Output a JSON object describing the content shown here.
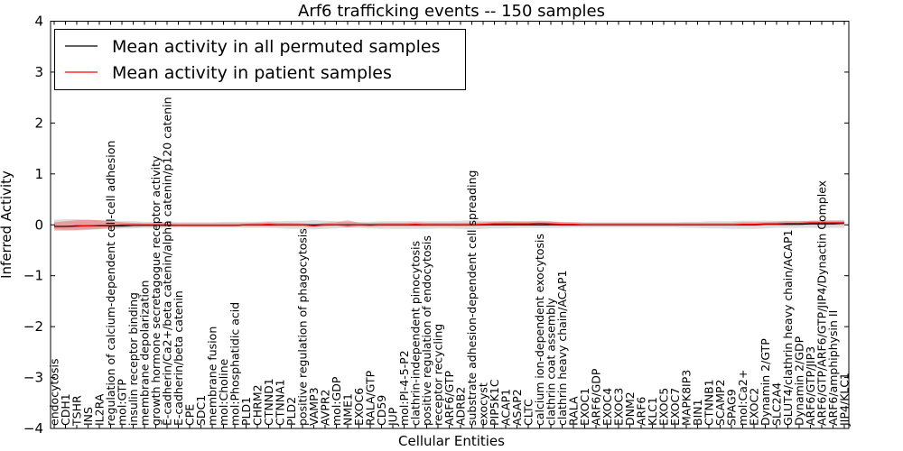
{
  "chart_data": {
    "type": "line",
    "title": "Arf6 trafficking events -- 150 samples",
    "xlabel": "Cellular Entities",
    "ylabel": "Inferred Activity",
    "ylim": [
      -4,
      4
    ],
    "yticks": [
      4,
      3,
      2,
      1,
      0,
      -1,
      -2,
      -3,
      -4
    ],
    "ytick_labels": [
      "4",
      "3",
      "2",
      "1",
      "0",
      "−1",
      "−2",
      "−3",
      "−4"
    ],
    "legend_position": "top-left",
    "categories": [
      "endocytosis",
      "CDH1",
      "TSHR",
      "INS",
      "IL2RA",
      "regulation of calcium-dependent cell-cell adhesion",
      "mol:GTP",
      "insulin receptor binding",
      "membrane depolarization",
      "growth hormone secretagogue receptor activity",
      "E-cadherin/Ca2+/beta catenin/alpha catenin/p120 catenin",
      "E-cadherin/beta catenin",
      "CPE",
      "SDC1",
      "membrane fusion",
      "mol:Choline",
      "mol:Phosphatidic acid",
      "PLD1",
      "CHRM2",
      "CTNND1",
      "CTNNA1",
      "PLD2",
      "positive regulation of phagocytosis",
      "VAMP3",
      "AVPR2",
      "mol:GDP",
      "NME1",
      "EXOC6",
      "RALA/GTP",
      "CD59",
      "JUP",
      "mol:PI-4-5-P2",
      "clathrin-independent pinocytosis",
      "positive regulation of endocytosis",
      "receptor recycling",
      "ARF6/GTP",
      "ADRB2",
      "substrate adhesion-dependent cell spreading",
      "exocyst",
      "PIP5K1C",
      "ACAP1",
      "ASAP2",
      "CLTC",
      "calcium ion-dependent exocytosis",
      "clathrin coat assembly",
      "clathrin heavy chain/ACAP1",
      "RALA",
      "EXOC1",
      "ARF6/GDP",
      "EXOC4",
      "EXOC3",
      "DNM2",
      "ARF6",
      "KLC1",
      "EXOC5",
      "EXOC7",
      "MAPK8IP3",
      "BIN1",
      "CTNNB1",
      "SCAMP2",
      "SPAG9",
      "mol:Ca2+",
      "EXOC2",
      "Dynamin 2/GTP",
      "SLC2A4",
      "GLUT4/clathrin heavy chain/ACAP1",
      "Dynamin 2/GDP",
      "ARF6/GTP/JIP3",
      "ARF6/GTP/ARF6/GTP/JIP4/Dynactin Complex",
      "ARF6/amphiphysin II",
      "JIP4/KLC1"
    ],
    "series": [
      {
        "name": "Mean activity in all permuted samples",
        "color": "#000000",
        "values": [
          -0.03,
          -0.03,
          -0.02,
          -0.02,
          -0.02,
          -0.02,
          -0.02,
          -0.01,
          -0.01,
          -0.01,
          -0.01,
          -0.01,
          -0.01,
          -0.01,
          -0.01,
          -0.01,
          -0.01,
          0.0,
          0.0,
          0.0,
          0.0,
          0.0,
          0.0,
          0.0,
          0.0,
          0.0,
          0.0,
          0.0,
          0.0,
          0.0,
          0.0,
          0.0,
          0.0,
          0.0,
          0.0,
          0.0,
          0.0,
          0.0,
          0.0,
          0.0,
          0.0,
          0.0,
          0.0,
          0.0,
          0.0,
          0.0,
          0.0,
          0.0,
          0.0,
          0.0,
          0.0,
          0.0,
          0.0,
          0.0,
          0.0,
          0.0,
          0.0,
          0.0,
          0.0,
          0.0,
          0.0,
          0.0,
          0.0,
          0.01,
          0.01,
          0.01,
          0.01,
          0.02,
          0.02,
          0.02,
          0.03
        ],
        "band_lower": [
          -0.12,
          -0.12,
          -0.11,
          -0.1,
          -0.09,
          -0.08,
          -0.07,
          -0.07,
          -0.06,
          -0.06,
          -0.06,
          -0.05,
          -0.05,
          -0.05,
          -0.05,
          -0.05,
          -0.05,
          -0.06,
          -0.06,
          -0.06,
          -0.07,
          -0.08,
          -0.08,
          -0.09,
          -0.08,
          -0.07,
          -0.06,
          -0.06,
          -0.07,
          -0.08,
          -0.08,
          -0.08,
          -0.08,
          -0.08,
          -0.07,
          -0.07,
          -0.08,
          -0.09,
          -0.08,
          -0.07,
          -0.07,
          -0.06,
          -0.06,
          -0.06,
          -0.06,
          -0.06,
          -0.05,
          -0.05,
          -0.05,
          -0.05,
          -0.05,
          -0.05,
          -0.05,
          -0.05,
          -0.05,
          -0.05,
          -0.06,
          -0.06,
          -0.07,
          -0.07,
          -0.08,
          -0.08,
          -0.08,
          -0.07,
          -0.06,
          -0.06,
          -0.06,
          -0.06,
          -0.06,
          -0.06,
          -0.06
        ],
        "band_upper": [
          0.1,
          0.11,
          0.11,
          0.1,
          0.09,
          0.08,
          0.07,
          0.07,
          0.06,
          0.06,
          0.06,
          0.05,
          0.05,
          0.05,
          0.05,
          0.06,
          0.06,
          0.06,
          0.06,
          0.07,
          0.07,
          0.08,
          0.08,
          0.09,
          0.08,
          0.07,
          0.06,
          0.06,
          0.06,
          0.07,
          0.07,
          0.07,
          0.07,
          0.07,
          0.07,
          0.07,
          0.08,
          0.09,
          0.08,
          0.07,
          0.07,
          0.06,
          0.06,
          0.06,
          0.06,
          0.06,
          0.05,
          0.05,
          0.05,
          0.05,
          0.05,
          0.05,
          0.05,
          0.05,
          0.05,
          0.05,
          0.06,
          0.06,
          0.07,
          0.07,
          0.07,
          0.08,
          0.08,
          0.08,
          0.08,
          0.08,
          0.08,
          0.08,
          0.09,
          0.09,
          0.1
        ]
      },
      {
        "name": "Mean activity in patient samples",
        "color": "#ff0000",
        "values": [
          -0.04,
          -0.04,
          -0.03,
          -0.02,
          -0.01,
          -0.01,
          0.0,
          0.0,
          0.0,
          0.0,
          0.0,
          -0.01,
          -0.01,
          -0.01,
          -0.01,
          -0.01,
          -0.01,
          0.0,
          0.0,
          0.01,
          0.0,
          0.0,
          0.0,
          -0.02,
          0.0,
          0.0,
          -0.01,
          0.0,
          -0.01,
          0.0,
          0.0,
          0.0,
          0.01,
          0.0,
          0.0,
          0.0,
          0.0,
          0.0,
          0.01,
          0.02,
          0.02,
          0.02,
          0.02,
          0.03,
          0.02,
          0.01,
          0.01,
          0.0,
          0.0,
          0.0,
          0.0,
          0.0,
          0.0,
          0.0,
          0.0,
          0.0,
          0.0,
          0.0,
          0.0,
          0.0,
          0.0,
          0.01,
          0.01,
          0.02,
          0.02,
          0.03,
          0.03,
          0.04,
          0.04,
          0.04,
          0.04
        ],
        "band_lower": [
          -0.09,
          -0.1,
          -0.1,
          -0.09,
          -0.08,
          -0.06,
          -0.05,
          -0.04,
          -0.03,
          -0.03,
          -0.03,
          -0.03,
          -0.03,
          -0.03,
          -0.03,
          -0.03,
          -0.03,
          -0.03,
          -0.03,
          -0.03,
          -0.03,
          -0.03,
          -0.03,
          -0.04,
          -0.03,
          -0.02,
          -0.05,
          -0.03,
          -0.03,
          -0.03,
          -0.03,
          -0.03,
          -0.03,
          -0.03,
          -0.03,
          -0.03,
          -0.03,
          -0.03,
          -0.02,
          -0.01,
          -0.01,
          -0.01,
          -0.01,
          -0.01,
          -0.01,
          -0.02,
          -0.02,
          -0.02,
          -0.02,
          -0.02,
          -0.02,
          -0.02,
          -0.02,
          -0.02,
          -0.02,
          -0.02,
          -0.02,
          -0.02,
          -0.02,
          -0.02,
          -0.02,
          -0.02,
          -0.02,
          -0.01,
          -0.01,
          -0.01,
          0.0,
          0.0,
          0.0,
          0.0,
          0.0
        ],
        "band_upper": [
          0.05,
          0.07,
          0.09,
          0.1,
          0.09,
          0.07,
          0.05,
          0.04,
          0.03,
          0.03,
          0.03,
          0.03,
          0.03,
          0.03,
          0.03,
          0.03,
          0.03,
          0.03,
          0.04,
          0.05,
          0.04,
          0.04,
          0.03,
          0.01,
          0.04,
          0.05,
          0.09,
          0.04,
          0.03,
          0.04,
          0.04,
          0.04,
          0.05,
          0.04,
          0.04,
          0.04,
          0.04,
          0.04,
          0.05,
          0.06,
          0.07,
          0.07,
          0.07,
          0.08,
          0.07,
          0.05,
          0.05,
          0.04,
          0.04,
          0.04,
          0.04,
          0.04,
          0.04,
          0.04,
          0.04,
          0.04,
          0.04,
          0.04,
          0.04,
          0.04,
          0.04,
          0.05,
          0.05,
          0.05,
          0.06,
          0.07,
          0.07,
          0.08,
          0.08,
          0.08,
          0.08
        ]
      }
    ]
  }
}
